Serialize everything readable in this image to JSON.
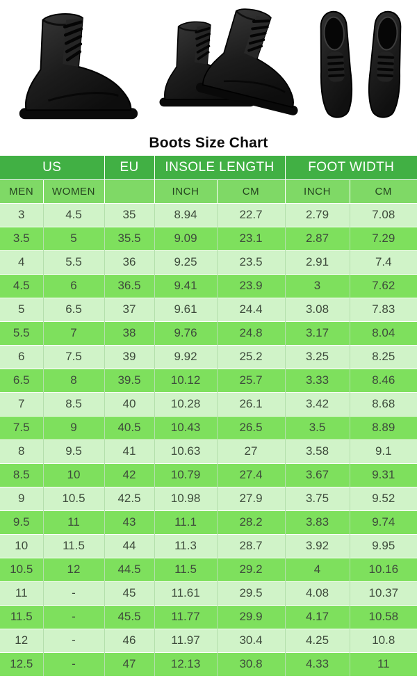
{
  "title": "Boots Size Chart",
  "hero": {
    "images": [
      {
        "name": "boot-side-view",
        "label": "black leather boot side view"
      },
      {
        "name": "boots-pair-angled",
        "label": "pair of black leather boots"
      },
      {
        "name": "boots-top-view",
        "label": "pair of black boots viewed from above"
      }
    ]
  },
  "colors": {
    "header_bg": "#41b044",
    "header_text": "#ffffff",
    "subheader_bg": "#7fd966",
    "subheader_text": "#24431f",
    "row_light_bg": "#d0f3c8",
    "row_bright_bg": "#7ee05d",
    "cell_text": "#3e4b3c",
    "divider": "#b4dfac",
    "boot_dark": "#111111",
    "boot_mid": "#2e2e2e"
  },
  "table": {
    "header_groups": [
      {
        "label": "US",
        "colspan": 2
      },
      {
        "label": "EU",
        "colspan": 1
      },
      {
        "label": "INSOLE LENGTH",
        "colspan": 2
      },
      {
        "label": "FOOT WIDTH",
        "colspan": 2
      }
    ],
    "sub_headers": [
      "MEN",
      "WOMEN",
      "",
      "INCH",
      "CM",
      "INCH",
      "CM"
    ],
    "column_keys": [
      "us-men",
      "us-women",
      "eu",
      "insole-inch",
      "insole-cm",
      "foot-width-inch",
      "foot-width-cm"
    ],
    "rows": [
      [
        "3",
        "4.5",
        "35",
        "8.94",
        "22.7",
        "2.79",
        "7.08"
      ],
      [
        "3.5",
        "5",
        "35.5",
        "9.09",
        "23.1",
        "2.87",
        "7.29"
      ],
      [
        "4",
        "5.5",
        "36",
        "9.25",
        "23.5",
        "2.91",
        "7.4"
      ],
      [
        "4.5",
        "6",
        "36.5",
        "9.41",
        "23.9",
        "3",
        "7.62"
      ],
      [
        "5",
        "6.5",
        "37",
        "9.61",
        "24.4",
        "3.08",
        "7.83"
      ],
      [
        "5.5",
        "7",
        "38",
        "9.76",
        "24.8",
        "3.17",
        "8.04"
      ],
      [
        "6",
        "7.5",
        "39",
        "9.92",
        "25.2",
        "3.25",
        "8.25"
      ],
      [
        "6.5",
        "8",
        "39.5",
        "10.12",
        "25.7",
        "3.33",
        "8.46"
      ],
      [
        "7",
        "8.5",
        "40",
        "10.28",
        "26.1",
        "3.42",
        "8.68"
      ],
      [
        "7.5",
        "9",
        "40.5",
        "10.43",
        "26.5",
        "3.5",
        "8.89"
      ],
      [
        "8",
        "9.5",
        "41",
        "10.63",
        "27",
        "3.58",
        "9.1"
      ],
      [
        "8.5",
        "10",
        "42",
        "10.79",
        "27.4",
        "3.67",
        "9.31"
      ],
      [
        "9",
        "10.5",
        "42.5",
        "10.98",
        "27.9",
        "3.75",
        "9.52"
      ],
      [
        "9.5",
        "11",
        "43",
        "11.1",
        "28.2",
        "3.83",
        "9.74"
      ],
      [
        "10",
        "11.5",
        "44",
        "11.3",
        "28.7",
        "3.92",
        "9.95"
      ],
      [
        "10.5",
        "12",
        "44.5",
        "11.5",
        "29.2",
        "4",
        "10.16"
      ],
      [
        "11",
        "-",
        "45",
        "11.61",
        "29.5",
        "4.08",
        "10.37"
      ],
      [
        "11.5",
        "-",
        "45.5",
        "11.77",
        "29.9",
        "4.17",
        "10.58"
      ],
      [
        "12",
        "-",
        "46",
        "11.97",
        "30.4",
        "4.25",
        "10.8"
      ],
      [
        "12.5",
        "-",
        "47",
        "12.13",
        "30.8",
        "4.33",
        "11"
      ]
    ]
  }
}
